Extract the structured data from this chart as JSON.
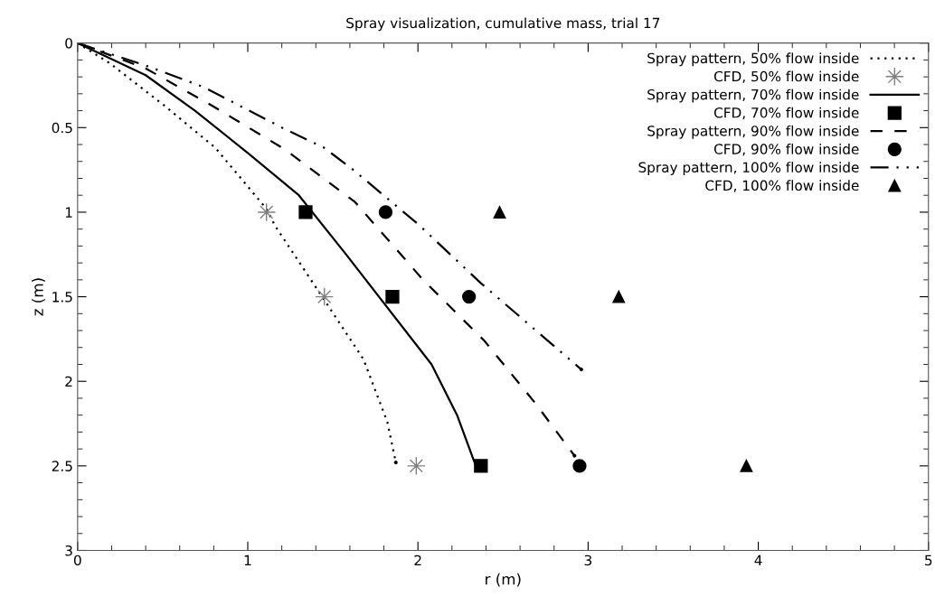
{
  "chart_data": {
    "type": "line",
    "title": "Spray visualization, cumulative mass, trial 17",
    "xlabel": "r (m)",
    "ylabel": "z (m)",
    "xlim": [
      0,
      5
    ],
    "xticks": [
      0,
      1,
      2,
      3,
      4,
      5
    ],
    "ylim": [
      3,
      0
    ],
    "yticks": [
      0,
      0.5,
      1,
      1.5,
      2,
      2.5,
      3
    ],
    "grid": false,
    "legend": "top right",
    "series": [
      {
        "name": "Spray pattern, 50% flow inside",
        "line_style": "dotted",
        "marker": "none",
        "color": "#000000",
        "x": [
          0,
          0.19,
          0.51,
          0.81,
          1.11,
          1.16,
          1.47,
          1.68,
          1.82,
          1.87
        ],
        "values": [
          0,
          0.12,
          0.37,
          0.62,
          0.98,
          1.08,
          1.55,
          1.87,
          2.24,
          2.48
        ]
      },
      {
        "name": "CFD, 50% flow inside",
        "type": "scatter",
        "marker": "star",
        "color": "#808080",
        "x": [
          1.11,
          1.45,
          1.99
        ],
        "values": [
          1,
          1.5,
          2.5
        ]
      },
      {
        "name": "Spray pattern, 70% flow inside",
        "line_style": "solid",
        "marker": "none",
        "color": "#000000",
        "x": [
          0,
          0.4,
          0.69,
          1.0,
          1.3,
          1.57,
          2.08,
          2.23,
          2.34
        ],
        "values": [
          0,
          0.19,
          0.4,
          0.65,
          0.9,
          1.24,
          1.9,
          2.2,
          2.5
        ]
      },
      {
        "name": "CFD, 70% flow inside",
        "type": "scatter",
        "marker": "square",
        "color": "#000000",
        "x": [
          1.34,
          1.85,
          2.37
        ],
        "values": [
          1,
          1.5,
          2.5
        ]
      },
      {
        "name": "Spray pattern, 90% flow inside",
        "line_style": "dashed",
        "marker": "none",
        "color": "#000000",
        "x": [
          0,
          0.4,
          0.79,
          1.22,
          1.63,
          2.03,
          2.39,
          2.69,
          2.92
        ],
        "values": [
          0,
          0.15,
          0.37,
          0.63,
          0.94,
          1.4,
          1.76,
          2.13,
          2.44
        ]
      },
      {
        "name": "CFD, 90% flow inside",
        "type": "scatter",
        "marker": "circle",
        "color": "#000000",
        "x": [
          1.81,
          2.3,
          2.95
        ],
        "values": [
          1,
          1.5,
          2.5
        ]
      },
      {
        "name": "Spray pattern, 100% flow inside",
        "line_style": "dashdot",
        "marker": "none",
        "color": "#000000",
        "x": [
          0,
          0.42,
          0.74,
          1.22,
          1.45,
          1.62,
          2.0,
          2.37,
          2.96
        ],
        "values": [
          0,
          0.14,
          0.26,
          0.51,
          0.62,
          0.75,
          1.07,
          1.42,
          1.93
        ]
      },
      {
        "name": "CFD, 100% flow inside",
        "type": "scatter",
        "marker": "triangle",
        "color": "#000000",
        "x": [
          2.48,
          3.18,
          3.93
        ],
        "values": [
          1,
          1.5,
          2.5
        ]
      }
    ]
  }
}
